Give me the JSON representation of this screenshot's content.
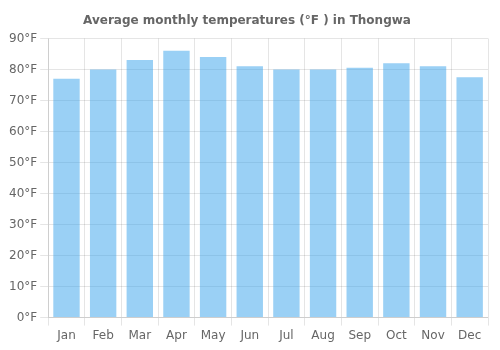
{
  "chart_data": {
    "type": "bar",
    "title": "Average monthly temperatures (°F ) in Thongwa",
    "categories": [
      "Jan",
      "Feb",
      "Mar",
      "Apr",
      "May",
      "Jun",
      "Jul",
      "Aug",
      "Sep",
      "Oct",
      "Nov",
      "Dec"
    ],
    "values": [
      77,
      80,
      83,
      86,
      84,
      81,
      80,
      80,
      80.5,
      82,
      81,
      77.5
    ],
    "ylim": [
      0,
      90
    ],
    "yticks": [
      {
        "value": 0,
        "label": "0°F"
      },
      {
        "value": 10,
        "label": "10°F"
      },
      {
        "value": 20,
        "label": "20°F"
      },
      {
        "value": 30,
        "label": "30°F"
      },
      {
        "value": 40,
        "label": "40°F"
      },
      {
        "value": 50,
        "label": "50°F"
      },
      {
        "value": 60,
        "label": "60°F"
      },
      {
        "value": 70,
        "label": "70°F"
      },
      {
        "value": 80,
        "label": "80°F"
      },
      {
        "value": 90,
        "label": "90°F"
      }
    ],
    "grid": true
  }
}
